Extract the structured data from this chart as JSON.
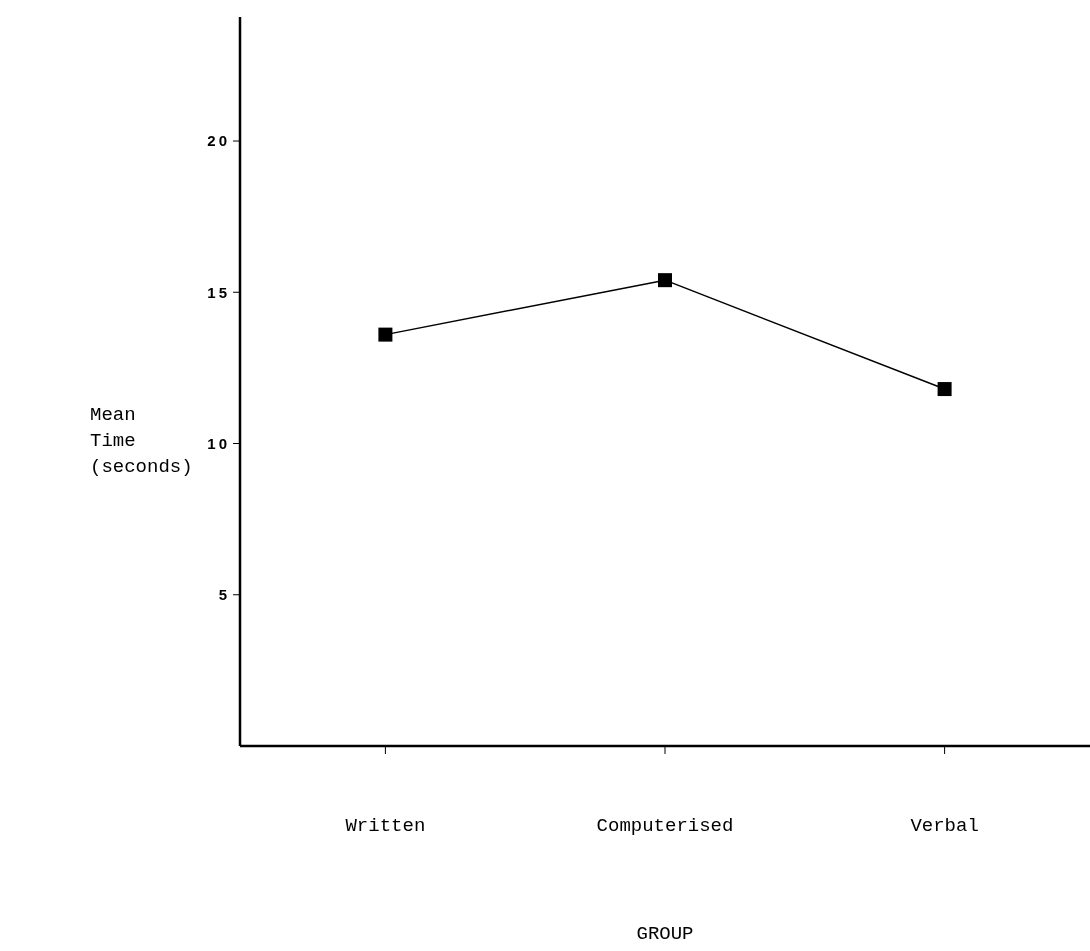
{
  "chart_data": {
    "type": "line",
    "xlabel": "GROUP",
    "ylabel": "Mean Time (seconds)",
    "categories": [
      "Written",
      "Computerised",
      "Verbal"
    ],
    "series": [
      {
        "color": "#000000",
        "values": [
          13.6,
          15.4,
          11.8
        ]
      }
    ],
    "ylim": [
      0,
      24.1
    ],
    "yticks": [
      5,
      10,
      15,
      20
    ],
    "marker": "square",
    "line_style": "solid"
  }
}
